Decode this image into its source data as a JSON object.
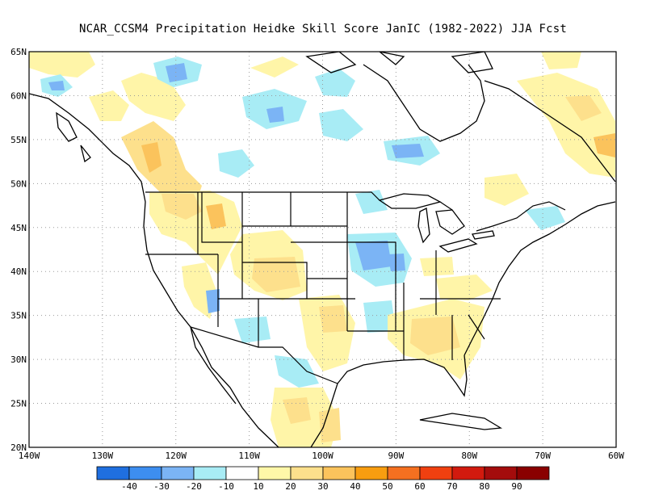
{
  "title": "NCAR_CCSM4  Precipitation Heidke Skill Score JanIC (1982-2022) JJA Fcst",
  "map": {
    "lat_ticks": [
      "65N",
      "60N",
      "55N",
      "50N",
      "45N",
      "40N",
      "35N",
      "30N",
      "25N",
      "20N"
    ],
    "lon_ticks": [
      "140W",
      "130W",
      "120W",
      "110W",
      "100W",
      "90W",
      "80W",
      "70W",
      "60W"
    ],
    "lat_range": [
      20,
      65
    ],
    "lon_range": [
      -140,
      -60
    ],
    "grid": "dotted"
  },
  "colorbar": {
    "labels": [
      "-40",
      "-30",
      "-20",
      "-10",
      "10",
      "20",
      "30",
      "40",
      "50",
      "60",
      "70",
      "80",
      "90"
    ],
    "colors": [
      "#1f6fe0",
      "#3d8ef0",
      "#7bb4f5",
      "#a8ecf5",
      "#ffffff",
      "#fff7a8",
      "#fde08c",
      "#fbc35c",
      "#f89d10",
      "#f57020",
      "#f04010",
      "#d21a0e",
      "#a40c0c",
      "#8a0000"
    ]
  },
  "shading": {
    "blue": "#8dc6f5",
    "cyan": "#b2eef7",
    "yellow": "#fff5a8",
    "tan": "#fde08c"
  }
}
